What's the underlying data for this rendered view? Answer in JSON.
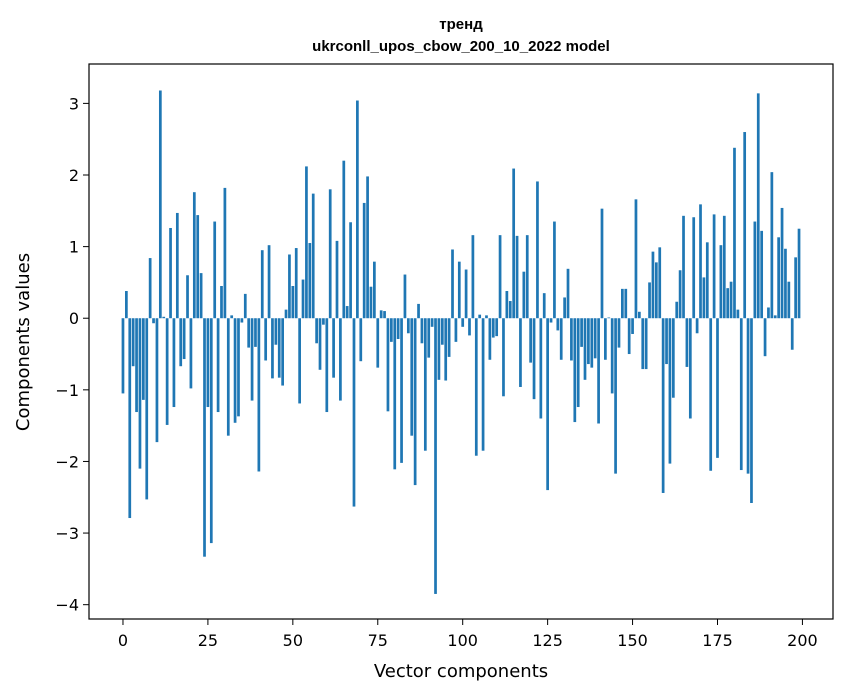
{
  "chart_data": {
    "type": "bar",
    "title_line1": "тренд",
    "title_line2": "ukrconll_upos_cbow_200_10_2022 model",
    "xlabel": "Vector components",
    "ylabel": "Components values",
    "xlim": [
      -10,
      209
    ],
    "ylim": [
      -4.2,
      3.55
    ],
    "xticks": [
      0,
      25,
      50,
      75,
      100,
      125,
      150,
      175,
      200
    ],
    "yticks": [
      -4,
      -3,
      -2,
      -1,
      0,
      1,
      2,
      3
    ],
    "bar_color": "#1f77b4",
    "grid": false,
    "values": [
      -1.05,
      0.38,
      -2.79,
      -0.67,
      -1.31,
      -2.1,
      -1.14,
      -2.53,
      0.84,
      -0.07,
      -1.73,
      3.18,
      0.02,
      -1.49,
      1.26,
      -1.24,
      1.47,
      -0.67,
      -0.57,
      0.6,
      -0.98,
      1.76,
      1.44,
      0.63,
      -3.33,
      -1.24,
      -3.14,
      1.35,
      -1.31,
      0.45,
      1.82,
      -1.64,
      0.04,
      -1.46,
      -1.37,
      -0.06,
      0.34,
      -0.41,
      -1.15,
      -0.4,
      -2.14,
      0.95,
      -0.59,
      1.02,
      -0.84,
      -0.37,
      -0.83,
      -0.94,
      0.12,
      0.89,
      0.45,
      0.98,
      -1.19,
      0.54,
      2.12,
      1.05,
      1.74,
      -0.35,
      -0.72,
      -0.09,
      -1.31,
      1.8,
      -0.83,
      1.08,
      -1.15,
      2.2,
      0.17,
      1.34,
      -2.63,
      3.04,
      -0.6,
      1.61,
      1.98,
      0.44,
      0.79,
      -0.69,
      0.11,
      0.1,
      -1.3,
      -0.33,
      -2.11,
      -0.29,
      -2.02,
      0.61,
      -0.21,
      -1.64,
      -2.33,
      0.2,
      -0.35,
      -1.85,
      -0.55,
      -0.12,
      -3.85,
      -0.86,
      -0.37,
      -0.87,
      -0.54,
      0.96,
      -0.33,
      0.79,
      -0.12,
      0.68,
      -0.24,
      1.16,
      -1.92,
      0.05,
      -1.85,
      0.04,
      -0.58,
      -0.27,
      -0.25,
      1.16,
      -1.09,
      0.38,
      0.24,
      2.09,
      1.15,
      -0.96,
      0.65,
      1.16,
      -0.62,
      -1.13,
      1.91,
      -1.4,
      0.35,
      -2.4,
      -0.06,
      1.35,
      -0.17,
      -0.58,
      0.29,
      0.69,
      -0.59,
      -1.45,
      -1.24,
      -0.4,
      -0.86,
      -0.64,
      -0.69,
      -0.56,
      -1.47,
      1.53,
      -0.58,
      0.01,
      -1.05,
      -2.17,
      -0.41,
      0.41,
      0.41,
      -0.5,
      -0.22,
      1.66,
      0.09,
      -0.71,
      -0.71,
      0.5,
      0.93,
      0.78,
      0.99,
      -2.44,
      -0.64,
      -2.03,
      -1.11,
      0.23,
      0.67,
      1.43,
      -0.68,
      -1.4,
      1.41,
      -0.21,
      1.59,
      0.57,
      1.06,
      -2.13,
      1.45,
      -1.95,
      1.02,
      1.43,
      0.42,
      0.51,
      2.38,
      0.12,
      -2.12,
      2.6,
      -2.17,
      -2.58,
      1.35,
      3.14,
      1.22,
      -0.53,
      0.15,
      2.04,
      0.04,
      1.13,
      1.54,
      0.97,
      0.51,
      -0.44,
      0.85,
      1.25
    ]
  }
}
